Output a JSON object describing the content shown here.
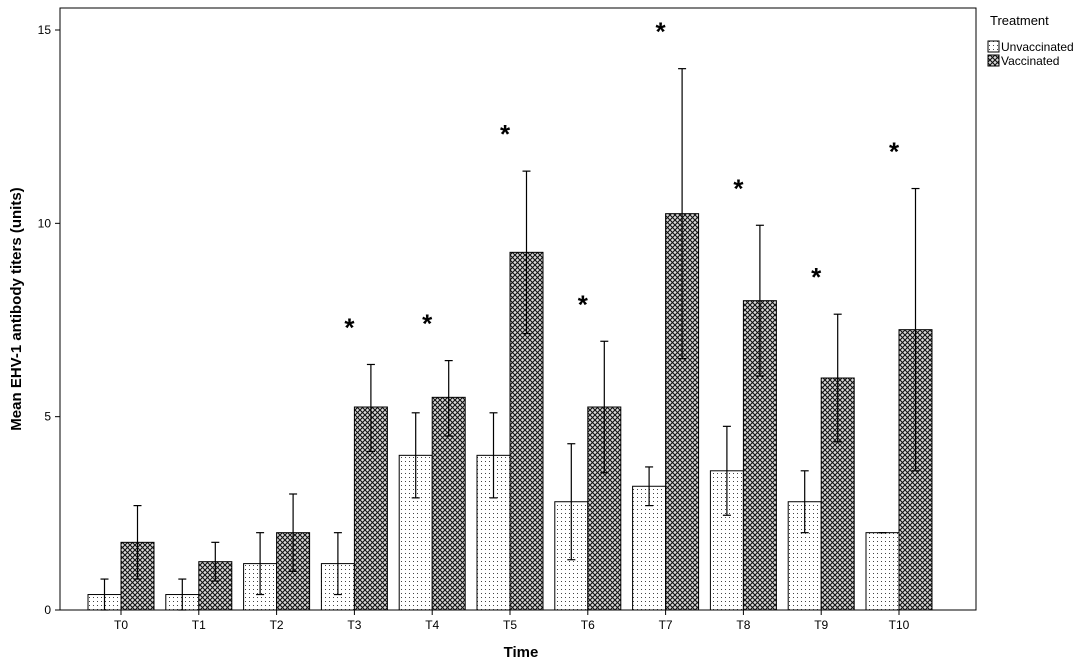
{
  "chart_data": {
    "type": "bar",
    "title": "",
    "xlabel": "Time",
    "ylabel": "Mean EHV-1 antibody titers (units)",
    "ylim": [
      0,
      15
    ],
    "yticks": [
      0,
      5,
      10,
      15
    ],
    "grid": false,
    "legend": {
      "title": "Treatment",
      "placement": "top-right"
    },
    "categories": [
      "T0",
      "T1",
      "T2",
      "T3",
      "T4",
      "T5",
      "T6",
      "T7",
      "T8",
      "T9",
      "T10"
    ],
    "significance_marker": "*",
    "significant": [
      false,
      false,
      false,
      true,
      true,
      true,
      true,
      true,
      true,
      true,
      true
    ],
    "series": [
      {
        "name": "Unvaccinated",
        "pattern": "dots",
        "values": [
          0.4,
          0.4,
          1.2,
          1.2,
          4.0,
          4.0,
          2.8,
          3.2,
          3.6,
          2.8,
          2.0
        ],
        "error_low": [
          0.0,
          0.0,
          0.4,
          0.4,
          2.9,
          2.9,
          1.3,
          2.7,
          2.45,
          2.0,
          2.0
        ],
        "error_high": [
          0.8,
          0.8,
          2.0,
          2.0,
          5.1,
          5.1,
          4.3,
          3.7,
          4.75,
          3.6,
          2.0
        ]
      },
      {
        "name": "Vaccinated",
        "pattern": "crosshatch",
        "values": [
          1.75,
          1.25,
          2.0,
          5.25,
          5.5,
          9.25,
          5.25,
          10.25,
          8.0,
          6.0,
          7.25
        ],
        "error_low": [
          0.8,
          0.75,
          1.0,
          4.1,
          4.5,
          7.15,
          3.55,
          6.5,
          6.05,
          4.35,
          3.6
        ],
        "error_high": [
          2.7,
          1.75,
          3.0,
          6.35,
          6.45,
          11.35,
          6.95,
          14.0,
          9.95,
          7.65,
          10.9
        ]
      }
    ]
  }
}
